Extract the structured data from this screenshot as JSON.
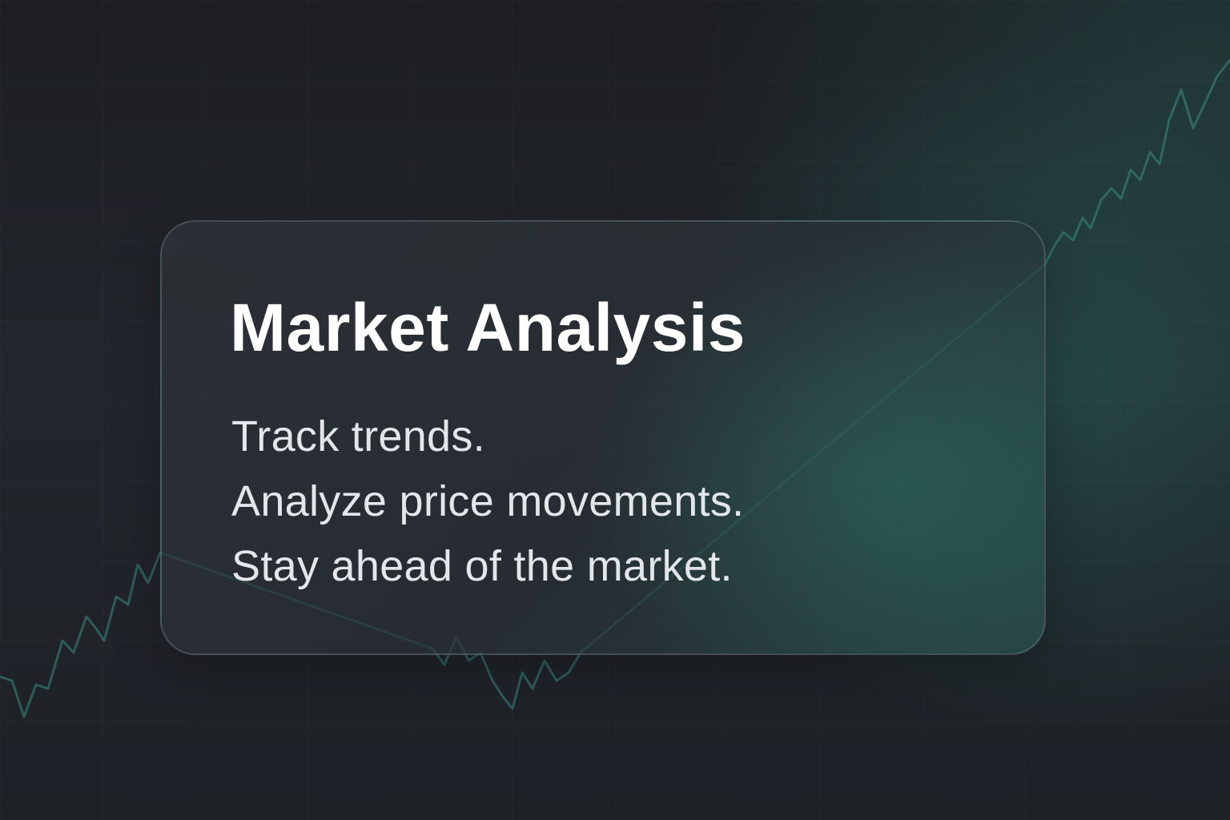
{
  "card": {
    "title": "Market Analysis",
    "lines": [
      "Track trends.",
      "Analyze price movements.",
      "Stay ahead of the market."
    ]
  },
  "colors": {
    "background": "#1d2025",
    "accent": "#3d8f86",
    "title_text": "#ffffff",
    "body_text": "#e4e7ea"
  },
  "decor": {
    "background_graphic": "price-trend-line",
    "grid": true
  }
}
